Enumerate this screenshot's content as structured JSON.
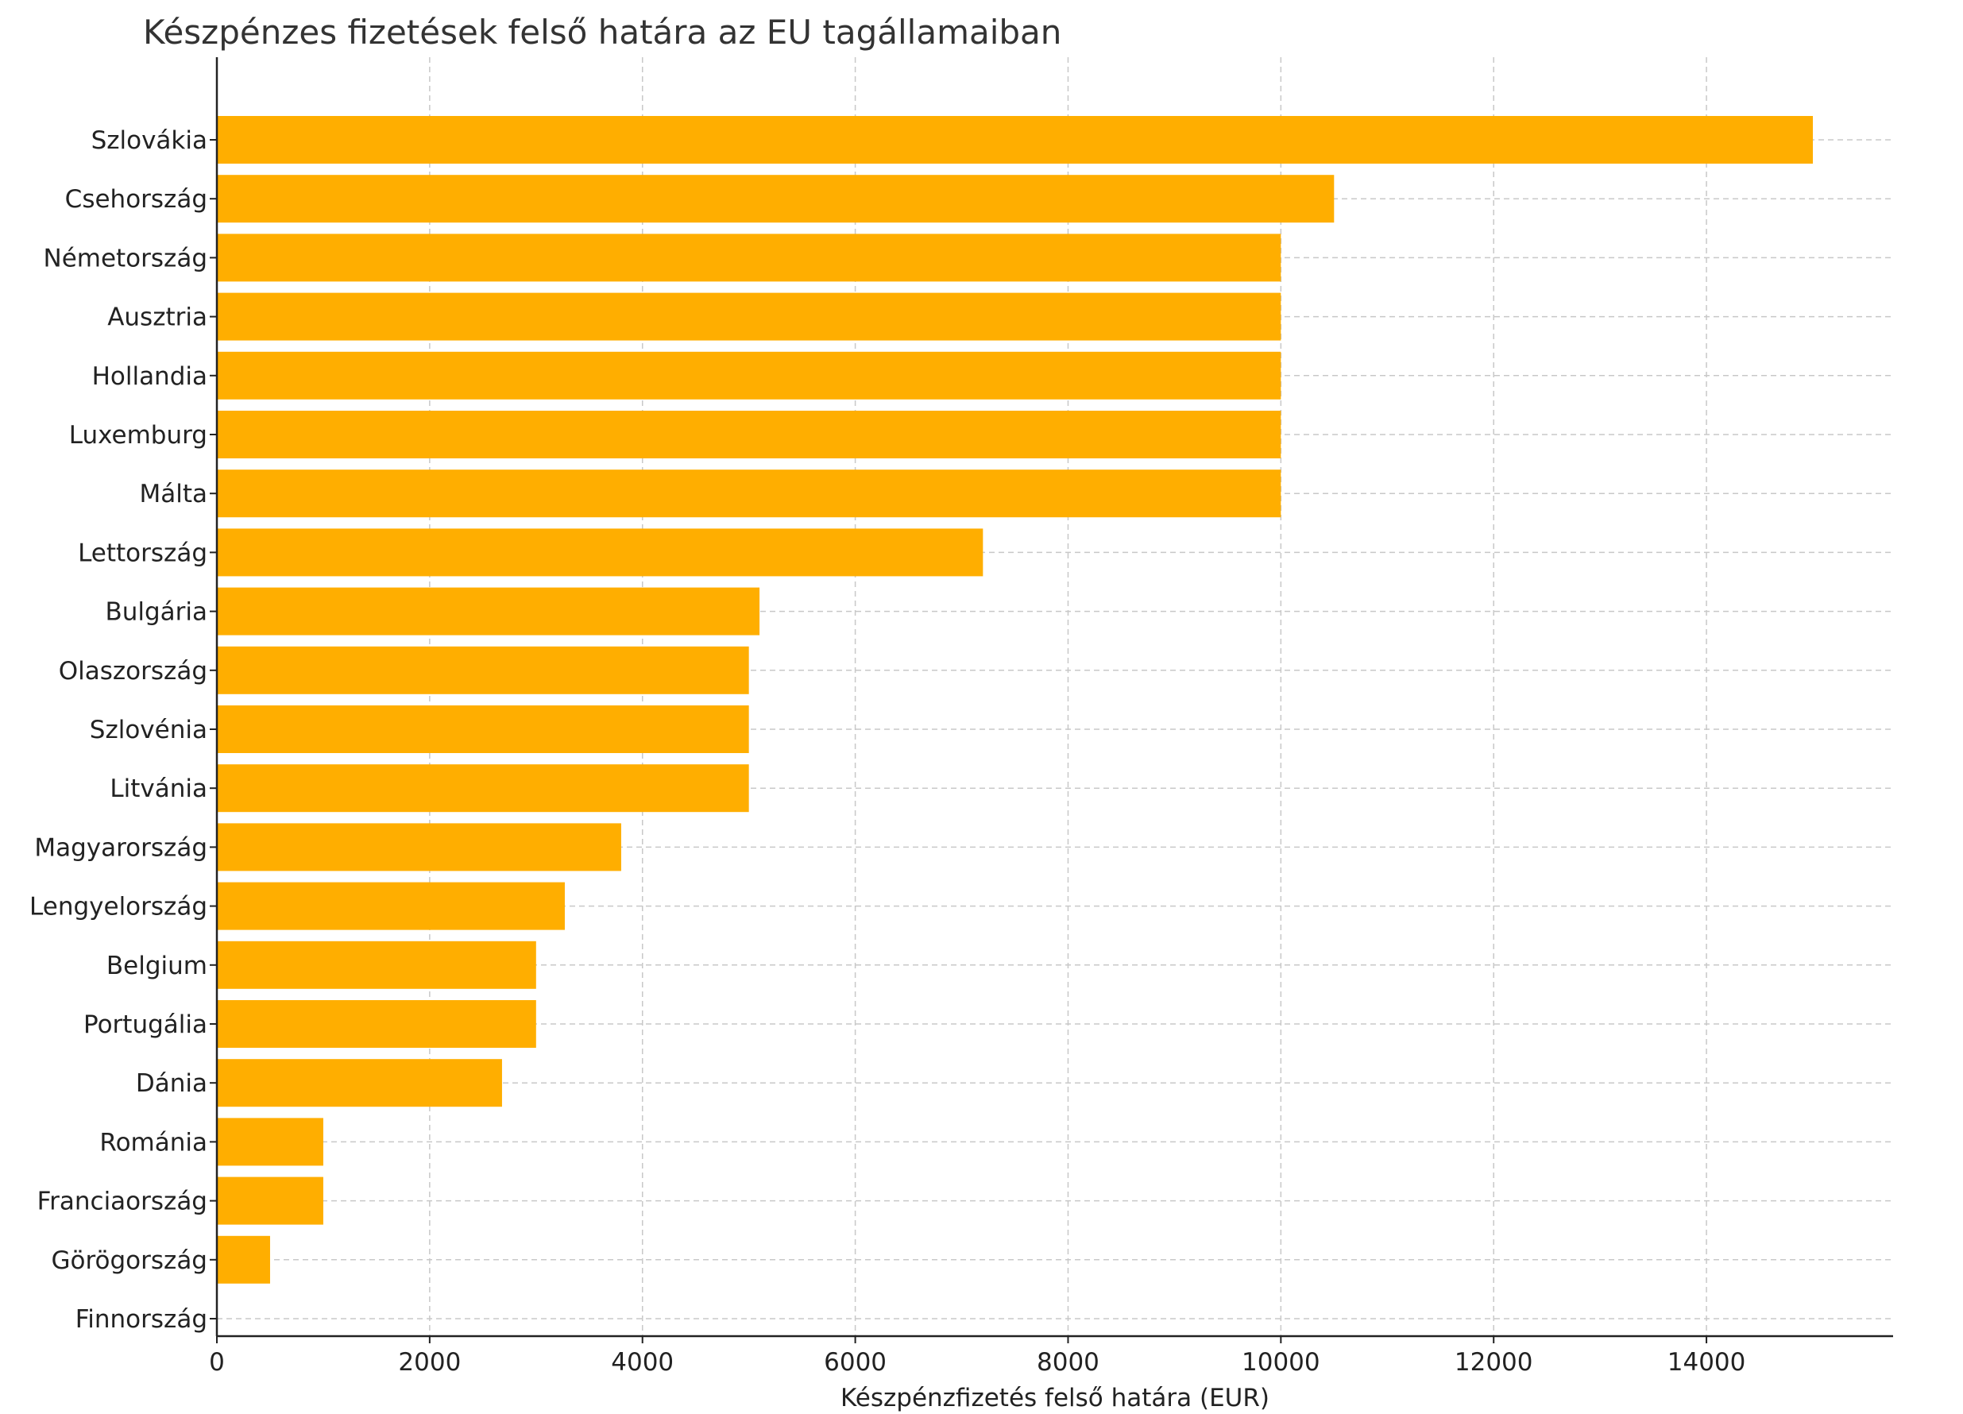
{
  "chart_data": {
    "type": "bar",
    "orientation": "horizontal",
    "title": "Készpénzes fizetések felső határa az EU tagállamaiban",
    "xlabel": "Készpénzfizetés felső határa (EUR)",
    "ylabel": "",
    "xlim": [
      0,
      15750
    ],
    "xticks": [
      0,
      2000,
      4000,
      6000,
      8000,
      10000,
      12000,
      14000
    ],
    "grid": true,
    "legend": "none",
    "bar_color": "#FFAE00",
    "categories": [
      "Szlovákia",
      "Csehország",
      "Németország",
      "Ausztria",
      "Hollandia",
      "Luxemburg",
      "Málta",
      "Lettország",
      "Bulgária",
      "Olaszország",
      "Szlovénia",
      "Litvánia",
      "Magyarország",
      "Lengyelország",
      "Belgium",
      "Portugália",
      "Dánia",
      "Románia",
      "Franciaország",
      "Görögország",
      "Finnország"
    ],
    "values": [
      15000,
      10500,
      10000,
      10000,
      10000,
      10000,
      10000,
      7200,
      5100,
      5000,
      5000,
      5000,
      3800,
      3270,
      3000,
      3000,
      2680,
      1000,
      1000,
      500,
      0
    ]
  }
}
